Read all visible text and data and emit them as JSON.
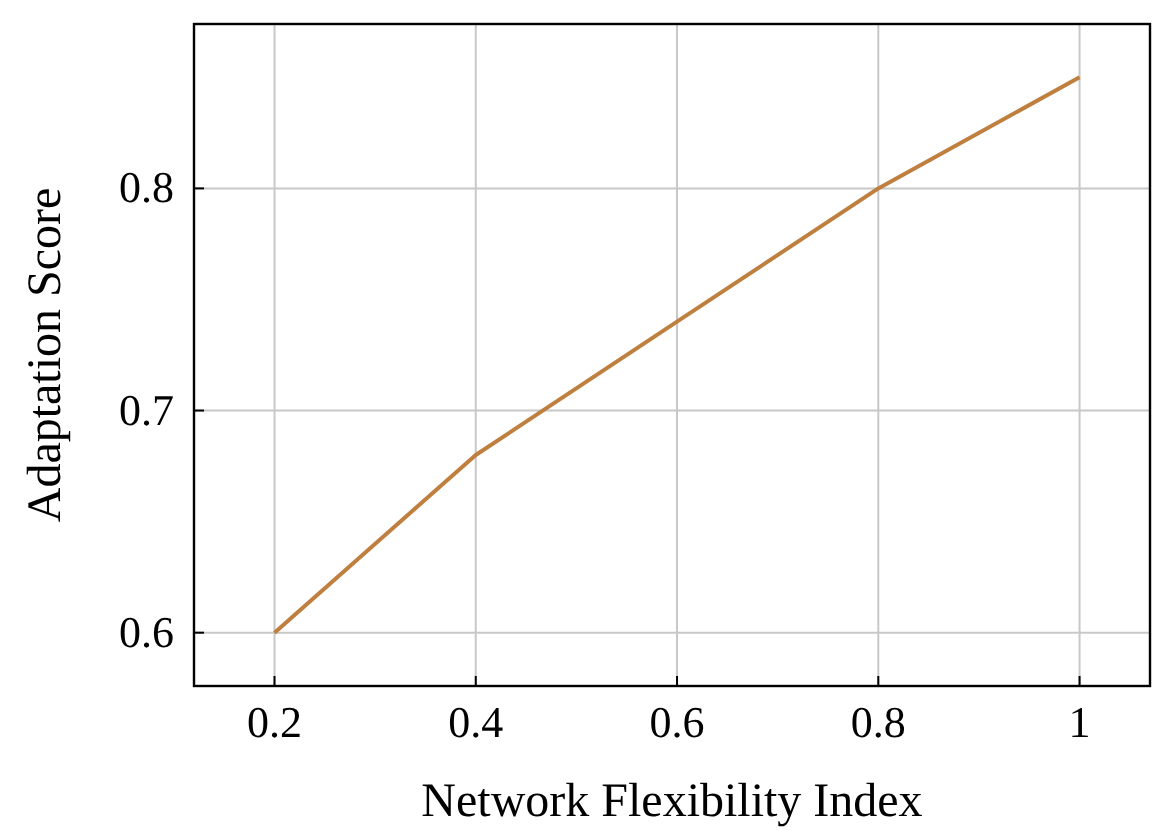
{
  "chart_data": {
    "type": "line",
    "xlabel": "Network Flexibility Index",
    "ylabel": "Adaptation Score",
    "x": [
      0.2,
      0.4,
      0.6,
      0.8,
      1
    ],
    "series": [
      {
        "color": "#bf7f3f",
        "values": [
          0.6,
          0.68,
          0.74,
          0.8,
          0.85
        ]
      }
    ],
    "xlim": [
      0.12,
      1.07
    ],
    "ylim": [
      0.576,
      0.874
    ],
    "xticks": [
      0.2,
      0.4,
      0.6,
      0.8,
      1
    ],
    "yticks": [
      0.6,
      0.7,
      0.8
    ],
    "grid": true,
    "marker": "none",
    "line_style": "solid"
  }
}
